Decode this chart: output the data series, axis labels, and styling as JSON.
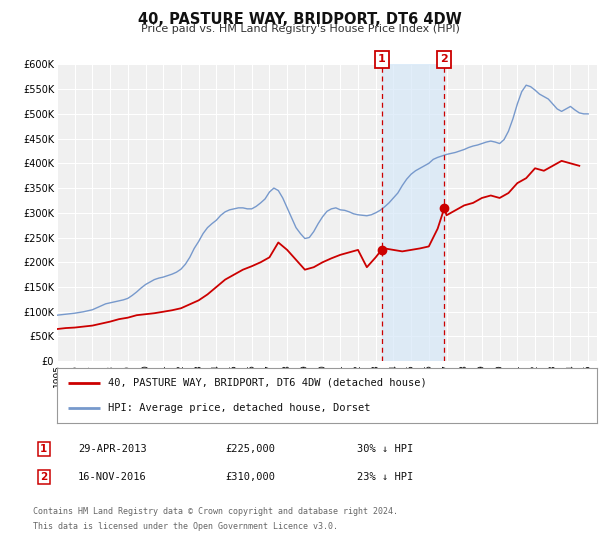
{
  "title": "40, PASTURE WAY, BRIDPORT, DT6 4DW",
  "subtitle": "Price paid vs. HM Land Registry's House Price Index (HPI)",
  "ylim": [
    0,
    600000
  ],
  "xlim_start": 1995.0,
  "xlim_end": 2025.5,
  "yticks": [
    0,
    50000,
    100000,
    150000,
    200000,
    250000,
    300000,
    350000,
    400000,
    450000,
    500000,
    550000,
    600000
  ],
  "ytick_labels": [
    "£0",
    "£50K",
    "£100K",
    "£150K",
    "£200K",
    "£250K",
    "£300K",
    "£350K",
    "£400K",
    "£450K",
    "£500K",
    "£550K",
    "£600K"
  ],
  "xticks": [
    1995,
    1996,
    1997,
    1998,
    1999,
    2000,
    2001,
    2002,
    2003,
    2004,
    2005,
    2006,
    2007,
    2008,
    2009,
    2010,
    2011,
    2012,
    2013,
    2014,
    2015,
    2016,
    2017,
    2018,
    2019,
    2020,
    2021,
    2022,
    2023,
    2024,
    2025
  ],
  "legend_line1": "40, PASTURE WAY, BRIDPORT, DT6 4DW (detached house)",
  "legend_line2": "HPI: Average price, detached house, Dorset",
  "line1_color": "#cc0000",
  "line2_color": "#7799cc",
  "marker1_color": "#cc0000",
  "sale1_x": 2013.33,
  "sale1_y": 225000,
  "sale1_label": "1",
  "sale2_x": 2016.88,
  "sale2_y": 310000,
  "sale2_label": "2",
  "vline1_x": 2013.33,
  "vline2_x": 2016.88,
  "shade_color": "#d6e8f8",
  "info1_date": "29-APR-2013",
  "info1_price": "£225,000",
  "info1_pct": "30% ↓ HPI",
  "info2_date": "16-NOV-2016",
  "info2_price": "£310,000",
  "info2_pct": "23% ↓ HPI",
  "footer1": "Contains HM Land Registry data © Crown copyright and database right 2024.",
  "footer2": "This data is licensed under the Open Government Licence v3.0.",
  "bg_color": "#ffffff",
  "plot_bg_color": "#f0f0f0",
  "grid_color": "#ffffff",
  "hpi_data_x": [
    1995.0,
    1995.25,
    1995.5,
    1995.75,
    1996.0,
    1996.25,
    1996.5,
    1996.75,
    1997.0,
    1997.25,
    1997.5,
    1997.75,
    1998.0,
    1998.25,
    1998.5,
    1998.75,
    1999.0,
    1999.25,
    1999.5,
    1999.75,
    2000.0,
    2000.25,
    2000.5,
    2000.75,
    2001.0,
    2001.25,
    2001.5,
    2001.75,
    2002.0,
    2002.25,
    2002.5,
    2002.75,
    2003.0,
    2003.25,
    2003.5,
    2003.75,
    2004.0,
    2004.25,
    2004.5,
    2004.75,
    2005.0,
    2005.25,
    2005.5,
    2005.75,
    2006.0,
    2006.25,
    2006.5,
    2006.75,
    2007.0,
    2007.25,
    2007.5,
    2007.75,
    2008.0,
    2008.25,
    2008.5,
    2008.75,
    2009.0,
    2009.25,
    2009.5,
    2009.75,
    2010.0,
    2010.25,
    2010.5,
    2010.75,
    2011.0,
    2011.25,
    2011.5,
    2011.75,
    2012.0,
    2012.25,
    2012.5,
    2012.75,
    2013.0,
    2013.25,
    2013.5,
    2013.75,
    2014.0,
    2014.25,
    2014.5,
    2014.75,
    2015.0,
    2015.25,
    2015.5,
    2015.75,
    2016.0,
    2016.25,
    2016.5,
    2016.75,
    2017.0,
    2017.25,
    2017.5,
    2017.75,
    2018.0,
    2018.25,
    2018.5,
    2018.75,
    2019.0,
    2019.25,
    2019.5,
    2019.75,
    2020.0,
    2020.25,
    2020.5,
    2020.75,
    2021.0,
    2021.25,
    2021.5,
    2021.75,
    2022.0,
    2022.25,
    2022.5,
    2022.75,
    2023.0,
    2023.25,
    2023.5,
    2023.75,
    2024.0,
    2024.25,
    2024.5,
    2024.75,
    2025.0
  ],
  "hpi_data_y": [
    93000,
    94000,
    95000,
    96000,
    97000,
    98500,
    100000,
    102000,
    104000,
    108000,
    112000,
    116000,
    118000,
    120000,
    122000,
    124000,
    127000,
    133000,
    140000,
    148000,
    155000,
    160000,
    165000,
    168000,
    170000,
    173000,
    176000,
    180000,
    186000,
    196000,
    210000,
    228000,
    242000,
    258000,
    270000,
    278000,
    285000,
    295000,
    302000,
    306000,
    308000,
    310000,
    310000,
    308000,
    308000,
    313000,
    320000,
    328000,
    342000,
    350000,
    345000,
    330000,
    310000,
    290000,
    270000,
    258000,
    248000,
    250000,
    262000,
    278000,
    292000,
    303000,
    308000,
    310000,
    306000,
    305000,
    302000,
    298000,
    296000,
    295000,
    294000,
    296000,
    300000,
    305000,
    312000,
    320000,
    330000,
    340000,
    355000,
    368000,
    378000,
    385000,
    390000,
    395000,
    400000,
    408000,
    412000,
    415000,
    418000,
    420000,
    422000,
    425000,
    428000,
    432000,
    435000,
    437000,
    440000,
    443000,
    445000,
    443000,
    440000,
    448000,
    465000,
    490000,
    520000,
    545000,
    558000,
    555000,
    548000,
    540000,
    535000,
    530000,
    520000,
    510000,
    505000,
    510000,
    515000,
    508000,
    502000,
    500000,
    500000
  ],
  "pp_data_x": [
    1995.0,
    1995.5,
    1996.0,
    1996.5,
    1997.0,
    1997.5,
    1998.0,
    1998.5,
    1999.0,
    1999.5,
    2000.0,
    2000.5,
    2001.0,
    2001.5,
    2002.0,
    2002.5,
    2003.0,
    2003.5,
    2004.0,
    2004.5,
    2005.0,
    2005.5,
    2006.0,
    2006.5,
    2007.0,
    2007.5,
    2008.0,
    2008.5,
    2009.0,
    2009.5,
    2010.0,
    2010.5,
    2011.0,
    2011.5,
    2012.0,
    2012.5,
    2013.0,
    2013.33,
    2013.5,
    2014.0,
    2014.5,
    2015.0,
    2015.5,
    2016.0,
    2016.5,
    2016.88,
    2017.0,
    2017.5,
    2018.0,
    2018.5,
    2019.0,
    2019.5,
    2020.0,
    2020.5,
    2021.0,
    2021.5,
    2022.0,
    2022.5,
    2023.0,
    2023.5,
    2024.0,
    2024.5
  ],
  "pp_data_y": [
    65000,
    67000,
    68000,
    70000,
    72000,
    76000,
    80000,
    85000,
    88000,
    93000,
    95000,
    97000,
    100000,
    103000,
    107000,
    115000,
    123000,
    135000,
    150000,
    165000,
    175000,
    185000,
    192000,
    200000,
    210000,
    240000,
    225000,
    205000,
    185000,
    190000,
    200000,
    208000,
    215000,
    220000,
    225000,
    190000,
    210000,
    225000,
    228000,
    225000,
    222000,
    225000,
    228000,
    232000,
    268000,
    310000,
    295000,
    305000,
    315000,
    320000,
    330000,
    335000,
    330000,
    340000,
    360000,
    370000,
    390000,
    385000,
    395000,
    405000,
    400000,
    395000
  ]
}
